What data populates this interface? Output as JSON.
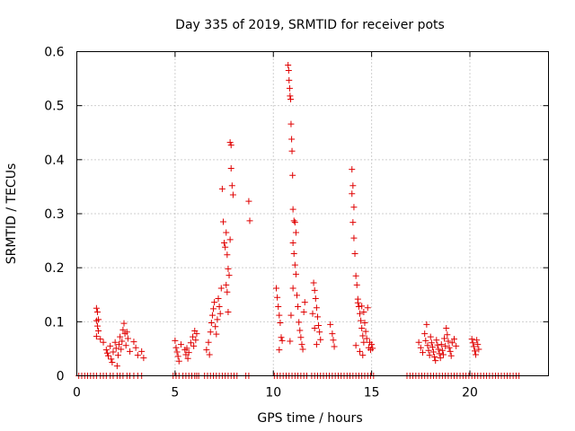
{
  "chart_data": {
    "type": "scatter",
    "title": "Day 335 of 2019, SRMTID for receiver pots",
    "xlabel": "GPS time / hours",
    "ylabel": "SRMTID / TECUs",
    "xlim": [
      0,
      24
    ],
    "ylim": [
      0,
      0.6
    ],
    "xticks": [
      0,
      5,
      10,
      15,
      20
    ],
    "yticks": [
      0,
      0.1,
      0.2,
      0.3,
      0.4,
      0.5,
      0.6
    ],
    "xtick_labels": [
      "0",
      "5",
      "10",
      "15",
      "20"
    ],
    "ytick_labels": [
      "0",
      "0.1",
      "0.2",
      "0.3",
      "0.4",
      "0.5",
      "0.6"
    ],
    "grid": true,
    "marker": "plus",
    "color": "#e00000",
    "series": [
      {
        "name": "pots",
        "points": [
          [
            1.0,
            0.125
          ],
          [
            1.05,
            0.118
          ],
          [
            1.1,
            0.104
          ],
          [
            1.0,
            0.102
          ],
          [
            1.05,
            0.092
          ],
          [
            1.1,
            0.083
          ],
          [
            1.0,
            0.073
          ],
          [
            1.2,
            0.068
          ],
          [
            1.35,
            0.062
          ],
          [
            1.5,
            0.048
          ],
          [
            1.55,
            0.042
          ],
          [
            1.6,
            0.037
          ],
          [
            1.7,
            0.055
          ],
          [
            1.75,
            0.031
          ],
          [
            1.8,
            0.025
          ],
          [
            1.85,
            0.044
          ],
          [
            1.95,
            0.062
          ],
          [
            2.0,
            0.051
          ],
          [
            2.05,
            0.018
          ],
          [
            2.1,
            0.038
          ],
          [
            2.15,
            0.058
          ],
          [
            2.2,
            0.072
          ],
          [
            2.25,
            0.049
          ],
          [
            2.3,
            0.064
          ],
          [
            2.35,
            0.085
          ],
          [
            2.4,
            0.097
          ],
          [
            2.45,
            0.078
          ],
          [
            2.5,
            0.056
          ],
          [
            2.55,
            0.081
          ],
          [
            2.6,
            0.069
          ],
          [
            2.7,
            0.045
          ],
          [
            2.9,
            0.063
          ],
          [
            3.0,
            0.052
          ],
          [
            3.1,
            0.038
          ],
          [
            3.3,
            0.045
          ],
          [
            3.4,
            0.033
          ],
          [
            5.0,
            0.065
          ],
          [
            5.05,
            0.052
          ],
          [
            5.1,
            0.044
          ],
          [
            5.15,
            0.036
          ],
          [
            5.2,
            0.027
          ],
          [
            5.3,
            0.058
          ],
          [
            5.5,
            0.048
          ],
          [
            5.55,
            0.039
          ],
          [
            5.6,
            0.051
          ],
          [
            5.65,
            0.032
          ],
          [
            5.7,
            0.043
          ],
          [
            5.8,
            0.061
          ],
          [
            5.9,
            0.072
          ],
          [
            5.95,
            0.055
          ],
          [
            6.0,
            0.083
          ],
          [
            6.05,
            0.066
          ],
          [
            6.1,
            0.078
          ],
          [
            6.6,
            0.048
          ],
          [
            6.7,
            0.062
          ],
          [
            6.75,
            0.039
          ],
          [
            6.8,
            0.081
          ],
          [
            6.85,
            0.098
          ],
          [
            6.9,
            0.112
          ],
          [
            6.95,
            0.124
          ],
          [
            7.0,
            0.136
          ],
          [
            7.05,
            0.091
          ],
          [
            7.1,
            0.077
          ],
          [
            7.15,
            0.104
          ],
          [
            7.2,
            0.143
          ],
          [
            7.25,
            0.128
          ],
          [
            7.3,
            0.115
          ],
          [
            7.35,
            0.162
          ],
          [
            7.4,
            0.346
          ],
          [
            7.45,
            0.285
          ],
          [
            7.5,
            0.246
          ],
          [
            7.55,
            0.238
          ],
          [
            7.6,
            0.265
          ],
          [
            7.65,
            0.224
          ],
          [
            7.7,
            0.198
          ],
          [
            7.75,
            0.186
          ],
          [
            7.8,
            0.252
          ],
          [
            7.85,
            0.384
          ],
          [
            7.9,
            0.352
          ],
          [
            7.95,
            0.335
          ],
          [
            7.8,
            0.432
          ],
          [
            7.85,
            0.427
          ],
          [
            7.6,
            0.168
          ],
          [
            7.65,
            0.155
          ],
          [
            7.7,
            0.118
          ],
          [
            8.75,
            0.323
          ],
          [
            8.8,
            0.287
          ],
          [
            10.15,
            0.162
          ],
          [
            10.2,
            0.145
          ],
          [
            10.25,
            0.128
          ],
          [
            10.3,
            0.112
          ],
          [
            10.35,
            0.098
          ],
          [
            10.4,
            0.071
          ],
          [
            10.45,
            0.065
          ],
          [
            10.3,
            0.048
          ],
          [
            10.75,
            0.575
          ],
          [
            10.78,
            0.565
          ],
          [
            10.8,
            0.547
          ],
          [
            10.83,
            0.532
          ],
          [
            10.85,
            0.518
          ],
          [
            10.88,
            0.512
          ],
          [
            10.9,
            0.466
          ],
          [
            10.93,
            0.438
          ],
          [
            10.95,
            0.416
          ],
          [
            10.98,
            0.371
          ],
          [
            11.0,
            0.308
          ],
          [
            11.05,
            0.287
          ],
          [
            11.1,
            0.284
          ],
          [
            11.15,
            0.265
          ],
          [
            11.0,
            0.246
          ],
          [
            11.05,
            0.226
          ],
          [
            11.1,
            0.205
          ],
          [
            11.15,
            0.188
          ],
          [
            11.0,
            0.162
          ],
          [
            11.2,
            0.149
          ],
          [
            11.25,
            0.128
          ],
          [
            10.9,
            0.112
          ],
          [
            11.3,
            0.099
          ],
          [
            11.35,
            0.084
          ],
          [
            11.4,
            0.071
          ],
          [
            10.85,
            0.064
          ],
          [
            11.45,
            0.058
          ],
          [
            11.5,
            0.049
          ],
          [
            11.55,
            0.118
          ],
          [
            11.6,
            0.136
          ],
          [
            12.05,
            0.172
          ],
          [
            12.1,
            0.158
          ],
          [
            12.15,
            0.143
          ],
          [
            12.2,
            0.126
          ],
          [
            12.25,
            0.109
          ],
          [
            12.3,
            0.093
          ],
          [
            12.35,
            0.081
          ],
          [
            12.4,
            0.067
          ],
          [
            12.0,
            0.115
          ],
          [
            12.1,
            0.088
          ],
          [
            12.2,
            0.058
          ],
          [
            12.9,
            0.095
          ],
          [
            13.0,
            0.078
          ],
          [
            13.05,
            0.066
          ],
          [
            13.1,
            0.054
          ],
          [
            14.0,
            0.382
          ],
          [
            14.05,
            0.352
          ],
          [
            14.0,
            0.337
          ],
          [
            14.1,
            0.312
          ],
          [
            14.05,
            0.284
          ],
          [
            14.1,
            0.255
          ],
          [
            14.15,
            0.226
          ],
          [
            14.2,
            0.185
          ],
          [
            14.25,
            0.168
          ],
          [
            14.3,
            0.142
          ],
          [
            14.35,
            0.128
          ],
          [
            14.4,
            0.115
          ],
          [
            14.45,
            0.102
          ],
          [
            14.5,
            0.088
          ],
          [
            14.55,
            0.074
          ],
          [
            14.6,
            0.062
          ],
          [
            14.3,
            0.135
          ],
          [
            14.5,
            0.129
          ],
          [
            14.6,
            0.118
          ],
          [
            14.65,
            0.098
          ],
          [
            14.7,
            0.082
          ],
          [
            14.75,
            0.069
          ],
          [
            14.8,
            0.126
          ],
          [
            14.85,
            0.052
          ],
          [
            14.9,
            0.062
          ],
          [
            14.95,
            0.048
          ],
          [
            15.0,
            0.058
          ],
          [
            15.05,
            0.051
          ],
          [
            14.4,
            0.045
          ],
          [
            14.55,
            0.038
          ],
          [
            14.2,
            0.056
          ],
          [
            17.4,
            0.062
          ],
          [
            17.5,
            0.052
          ],
          [
            17.6,
            0.043
          ],
          [
            17.7,
            0.078
          ],
          [
            17.75,
            0.065
          ],
          [
            17.8,
            0.095
          ],
          [
            17.85,
            0.056
          ],
          [
            17.9,
            0.047
          ],
          [
            17.95,
            0.038
          ],
          [
            18.0,
            0.072
          ],
          [
            18.05,
            0.061
          ],
          [
            18.1,
            0.053
          ],
          [
            18.15,
            0.044
          ],
          [
            18.2,
            0.035
          ],
          [
            18.25,
            0.028
          ],
          [
            18.3,
            0.066
          ],
          [
            18.35,
            0.057
          ],
          [
            18.4,
            0.049
          ],
          [
            18.45,
            0.041
          ],
          [
            18.5,
            0.033
          ],
          [
            18.55,
            0.058
          ],
          [
            18.6,
            0.047
          ],
          [
            18.65,
            0.039
          ],
          [
            18.7,
            0.069
          ],
          [
            18.75,
            0.055
          ],
          [
            18.8,
            0.088
          ],
          [
            18.85,
            0.076
          ],
          [
            18.9,
            0.064
          ],
          [
            18.95,
            0.052
          ],
          [
            19.0,
            0.045
          ],
          [
            19.05,
            0.037
          ],
          [
            19.1,
            0.061
          ],
          [
            19.2,
            0.068
          ],
          [
            19.3,
            0.055
          ],
          [
            20.1,
            0.068
          ],
          [
            20.15,
            0.061
          ],
          [
            20.2,
            0.054
          ],
          [
            20.25,
            0.046
          ],
          [
            20.3,
            0.039
          ],
          [
            20.35,
            0.066
          ],
          [
            20.4,
            0.058
          ],
          [
            20.45,
            0.049
          ]
        ]
      }
    ],
    "zero_points": [
      0.1,
      0.25,
      0.4,
      0.55,
      0.7,
      0.85,
      1.0,
      1.2,
      1.35,
      1.5,
      1.7,
      1.85,
      2.05,
      2.2,
      2.35,
      2.55,
      2.7,
      2.9,
      3.1,
      3.3,
      4.9,
      5.05,
      5.2,
      5.4,
      5.55,
      5.7,
      5.85,
      6.0,
      6.1,
      6.2,
      6.5,
      6.65,
      6.8,
      6.95,
      7.1,
      7.25,
      7.4,
      7.55,
      7.7,
      7.85,
      8.0,
      8.15,
      8.6,
      8.75,
      10.05,
      10.2,
      10.35,
      10.5,
      10.65,
      10.8,
      10.95,
      11.1,
      11.25,
      11.4,
      11.55,
      11.7,
      11.95,
      12.1,
      12.25,
      12.4,
      12.55,
      12.7,
      12.85,
      13.0,
      13.15,
      13.3,
      13.45,
      13.6,
      13.75,
      13.9,
      14.05,
      14.2,
      14.35,
      14.5,
      14.65,
      14.8,
      14.95,
      15.1,
      16.8,
      16.95,
      17.1,
      17.25,
      17.4,
      17.55,
      17.7,
      17.85,
      18.0,
      18.15,
      18.3,
      18.45,
      18.6,
      18.75,
      18.9,
      19.05,
      19.2,
      19.35,
      19.5,
      19.65,
      19.8,
      19.95,
      20.1,
      20.25,
      20.4,
      20.55,
      20.7,
      20.85,
      21.0,
      21.15,
      21.3,
      21.45,
      21.6,
      21.75,
      21.9,
      22.05,
      22.2,
      22.35,
      22.5
    ]
  }
}
